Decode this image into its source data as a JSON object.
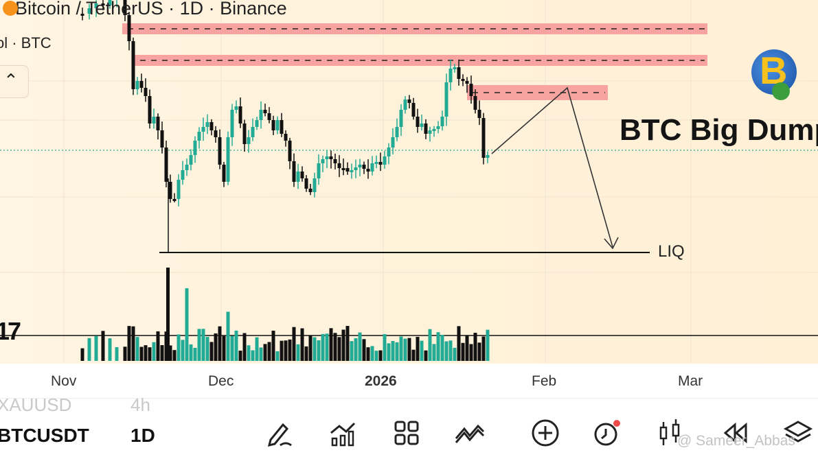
{
  "header": {
    "title": "Bitcoin / TetherUS · 1D · Binance",
    "volume_label": "ol · BTC",
    "collapse_icon": "chevron-up-icon"
  },
  "annotations": {
    "headline": "BTC Big Dump",
    "liq_label": "LIQ"
  },
  "colors": {
    "bull": "#22ab94",
    "bear": "#111111",
    "zone": "#f7a3a0",
    "accent": "#f7931a"
  },
  "time_axis": {
    "labels": [
      "Nov",
      "Dec",
      "2026",
      "Feb",
      "Mar"
    ]
  },
  "bottom_bar": {
    "previous_symbol": "XAUUSD",
    "previous_interval": "4h",
    "symbol": "BTCUSDT",
    "interval": "1D",
    "tools": [
      "pencil-icon",
      "indicators-icon",
      "grid-icon",
      "compare-icon",
      "plus-icon",
      "alert-clock-icon",
      "candles-icon",
      "replay-icon",
      "layers-icon"
    ]
  },
  "watermark": "@ Sameer_Abbas"
}
